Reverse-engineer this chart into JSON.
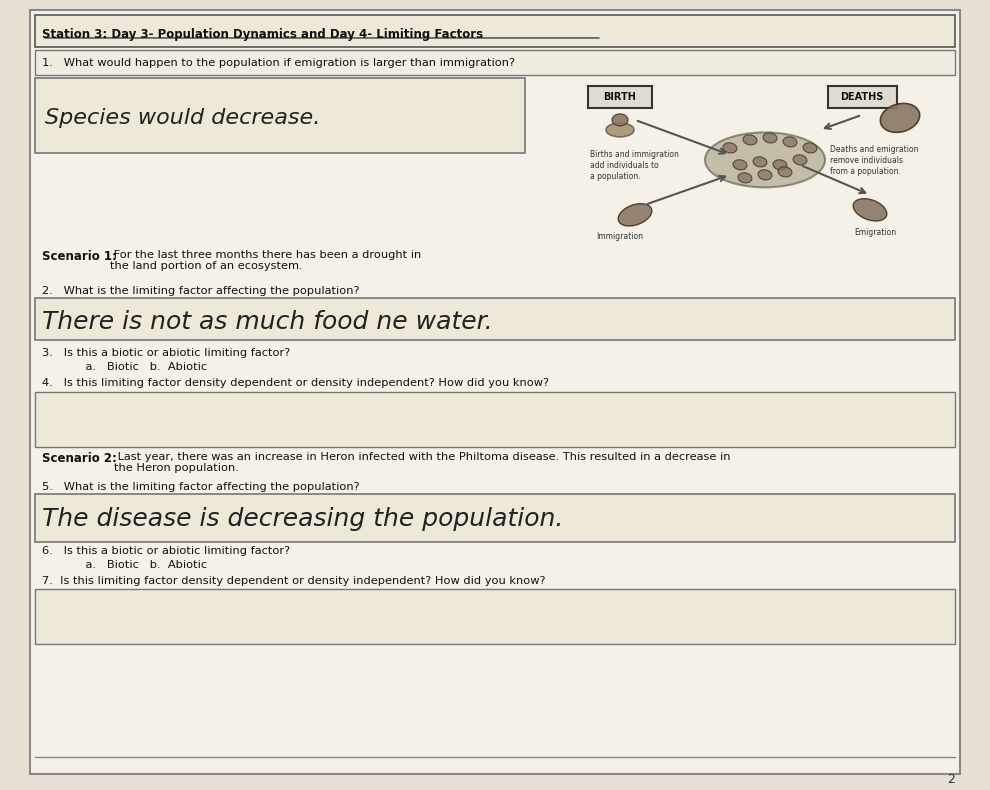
{
  "bg_color": "#e8e0d5",
  "paper_color": "#f5f0e8",
  "title": "Station 3: Day 3- Population Dynamics and Day 4- Limiting Factors",
  "q1": "1.   What would happen to the population if emigration is larger than immigration?",
  "answer1": "Species would decrease.",
  "scenario1_label": "Scenario 1:",
  "scenario1_text": " For the last three months there has been a drought in\nthe land portion of an ecosystem.",
  "q2": "2.   What is the limiting factor affecting the population?",
  "answer2": "There is not as much food ne water.",
  "q3": "3.   Is this a biotic or abiotic limiting factor?",
  "q3_choices": "            a.   Biotic   b.  Abiotic",
  "q4": "4.   Is this limiting factor density dependent or density independent? How did you know?",
  "scenario2_label": "Scenario 2:",
  "scenario2_text": " Last year, there was an increase in Heron infected with the Philtoma disease. This resulted in a decrease in\nthe Heron population.",
  "q5": "5.   What is the limiting factor affecting the population?",
  "answer5": "The disease is decreasing the population.",
  "q6": "6.   Is this a biotic or abiotic limiting factor?",
  "q6_choices": "            a.   Biotic   b.  Abiotic",
  "q7": "7.  Is this limiting factor density dependent or density independent? How did you know?",
  "page_num": "2",
  "birth_label": "BIRTH",
  "deaths_label": "DEATHS",
  "immigration_text": "Births and immigration\nadd individuals to\na population.",
  "emigration_text": "Deaths and emigration\nremove individuals\nfrom a population.",
  "immigration_bird_label": "Immigration",
  "emigration_bird_label": "Emigration"
}
